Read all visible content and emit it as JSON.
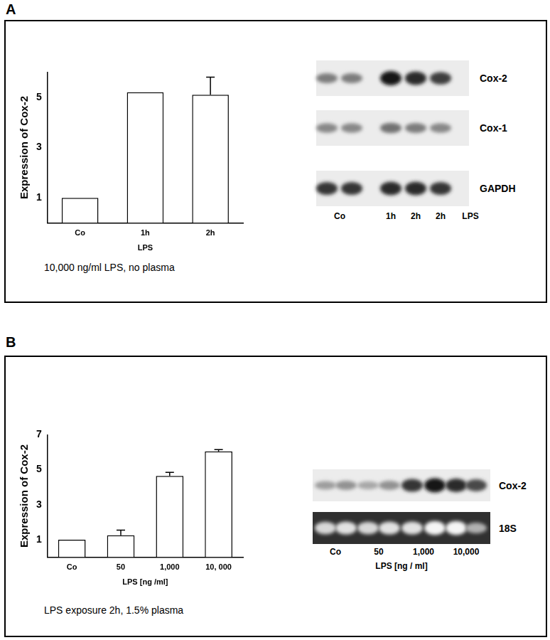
{
  "chart_data": [
    {
      "type": "bar",
      "categories": [
        "Co",
        "1h",
        "2h"
      ],
      "values": [
        1,
        5.2,
        5.1
      ],
      "errors": [
        null,
        null,
        0.7
      ],
      "color": "#ffffff",
      "y_label": "Expression of Cox-2",
      "x_label": "LPS",
      "ylim": [
        0,
        6
      ],
      "yticks": [
        1,
        3,
        5
      ],
      "grid": false
    },
    {
      "type": "bar",
      "categories": [
        "Co",
        "50",
        "1,000",
        "10, 000"
      ],
      "values": [
        1,
        1.25,
        4.65,
        6.05
      ],
      "errors": [
        null,
        0.3,
        0.2,
        0.1
      ],
      "color": "#ffffff",
      "y_label": "Expression of Cox-2",
      "x_label": "LPS [ng /ml]",
      "ylim": [
        0,
        7
      ],
      "yticks": [
        1,
        3,
        5,
        7
      ],
      "grid": false
    }
  ],
  "panels": [
    {
      "label": "A",
      "caption": "10,000 ng/ml LPS, no plasma",
      "blot": {
        "rows": [
          {
            "name": "Cox-2",
            "bands": [
              0.5,
              0.5,
              1,
              0.9,
              0.8
            ]
          },
          {
            "name": "Cox-1",
            "bands": [
              0.45,
              0.45,
              0.55,
              0.5,
              0.45
            ]
          },
          {
            "name": "GAPDH",
            "bands": [
              0.85,
              0.85,
              0.9,
              0.9,
              0.85
            ]
          }
        ],
        "lane_labels": [
          "Co",
          "1h",
          "2h",
          "2h",
          "LPS"
        ]
      }
    },
    {
      "label": "B",
      "caption": "LPS exposure 2h, 1.5% plasma",
      "blot": {
        "rows": [
          {
            "name": "Cox-2",
            "bands": [
              0.35,
              0.4,
              0.3,
              0.4,
              0.85,
              1,
              0.9,
              0.75
            ]
          },
          {
            "name": "18S",
            "bands": [
              0.8,
              0.85,
              0.8,
              0.85,
              0.85,
              0.95,
              0.95,
              0.6
            ],
            "style": "stain"
          }
        ],
        "lane_labels": [
          "Co",
          "50",
          "1,000",
          "10,000"
        ],
        "axis_label": "LPS [ng / ml]"
      }
    }
  ]
}
